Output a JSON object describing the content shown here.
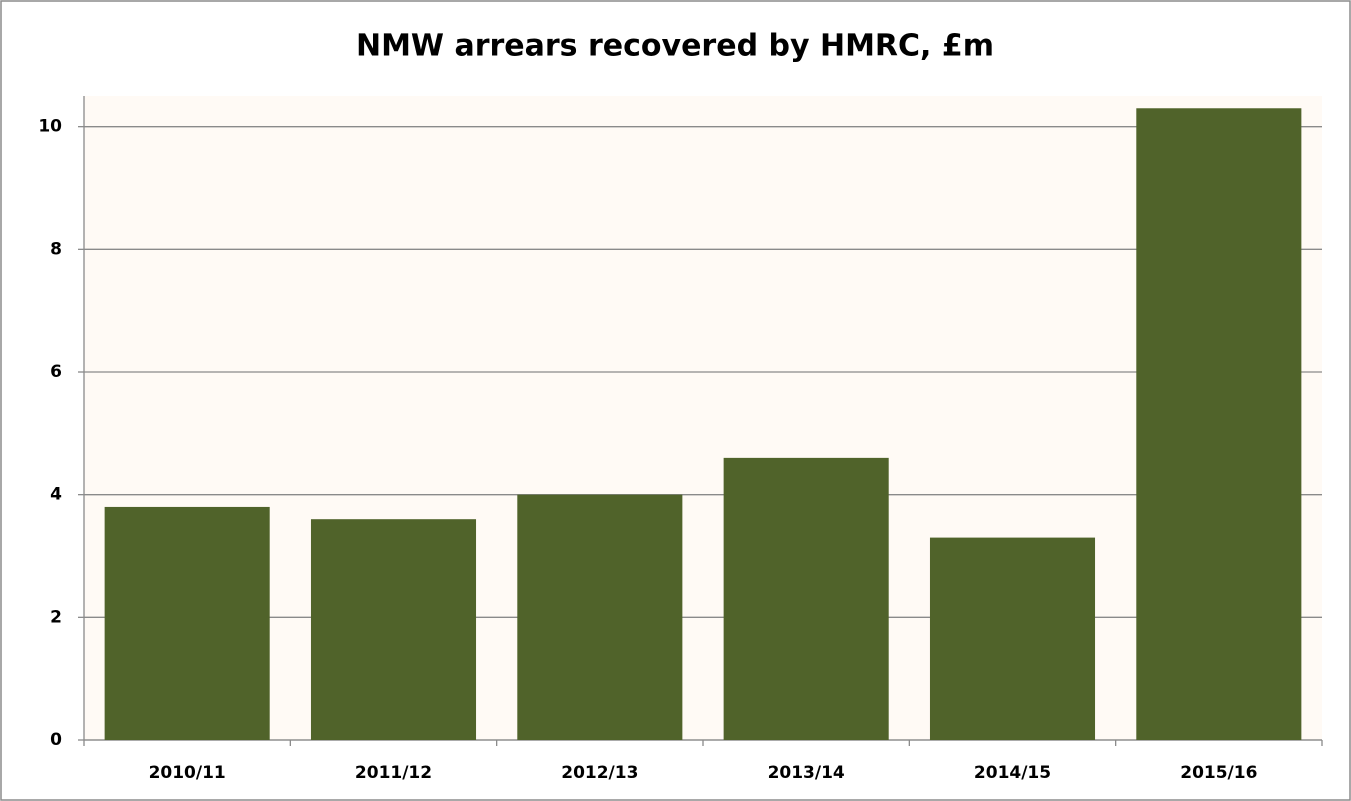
{
  "chart_data": {
    "type": "bar",
    "title": "NMW arrears recovered by HMRC, £m",
    "categories": [
      "2010/11",
      "2011/12",
      "2012/13",
      "2013/14",
      "2014/15",
      "2015/16"
    ],
    "values": [
      3.8,
      3.6,
      4.0,
      4.6,
      3.3,
      10.3
    ],
    "color": "#50632a",
    "ylim": [
      0,
      10.5
    ],
    "yticks": [
      0,
      2,
      4,
      6,
      8,
      10
    ],
    "grid": true
  }
}
